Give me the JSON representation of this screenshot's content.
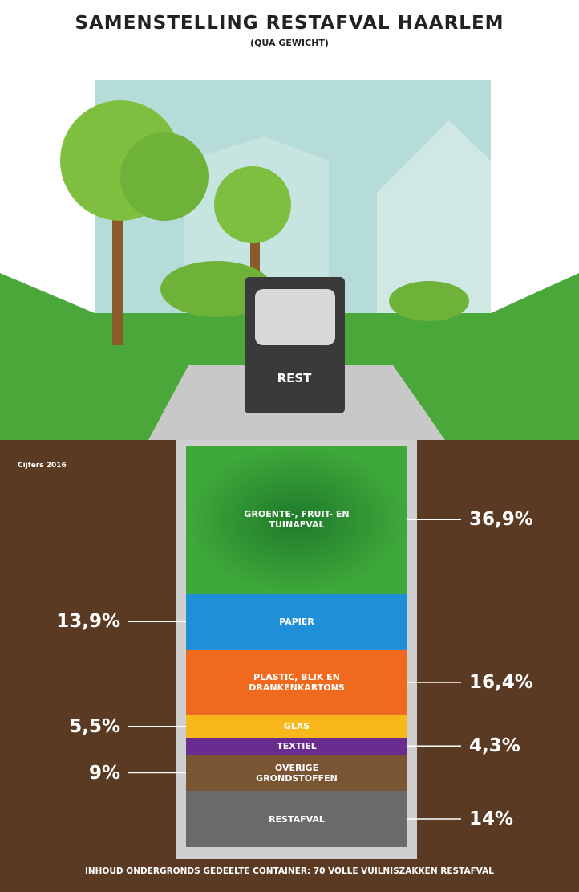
{
  "chart_data": {
    "type": "stacked-bar",
    "title": "SAMENSTELLING RESTAFVAL HAARLEM",
    "subtitle": "(QUA GEWICHT)",
    "container_label": "REST",
    "note": "Cijfers 2016",
    "footer": "INHOUD ONDERGRONDS GEDEELTE CONTAINER: 70 VOLLE VUILNISZAKKEN RESTAFVAL",
    "categories": [
      "GROENTE-, FRUIT- EN TUINAFVAL",
      "PAPIER",
      "PLASTIC, BLIK EN DRANKENKARTONS",
      "GLAS",
      "TEXTIEL",
      "OVERIGE GRONDSTOFFEN",
      "RESTAFVAL"
    ],
    "values": [
      36.9,
      13.9,
      16.4,
      5.5,
      4.3,
      9,
      14
    ],
    "value_labels": [
      "36,9%",
      "13,9%",
      "16,4%",
      "5,5%",
      "4,3%",
      "9%",
      "14%"
    ],
    "colors": [
      "#3ea83a",
      "#1f8fd8",
      "#ef6a1f",
      "#f8b81c",
      "#6a2c8e",
      "#7a5534",
      "#6a6a6a"
    ]
  }
}
